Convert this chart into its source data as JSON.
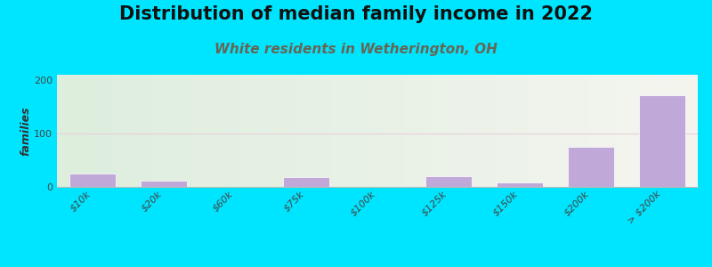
{
  "title": "Distribution of median family income in 2022",
  "subtitle": "White residents in Wetherington, OH",
  "ylabel": "families",
  "categories": [
    "$10k",
    "$20k",
    "$60k",
    "$75k",
    "$100k",
    "$125k",
    "$150k",
    "$200k",
    "> $200k"
  ],
  "values": [
    25,
    12,
    0,
    18,
    0,
    20,
    8,
    75,
    172
  ],
  "bar_color": "#c0a8d8",
  "background_color": "#00e5ff",
  "gradient_left_color": "#ddeedd",
  "gradient_right_color": "#f5f5f0",
  "grid_line_color": "#e8d0d8",
  "title_fontsize": 15,
  "subtitle_fontsize": 11,
  "subtitle_color": "#666655",
  "ylabel_fontsize": 9,
  "tick_fontsize": 8,
  "ylim": [
    0,
    210
  ],
  "yticks": [
    0,
    100,
    200
  ],
  "title_color": "#111111"
}
